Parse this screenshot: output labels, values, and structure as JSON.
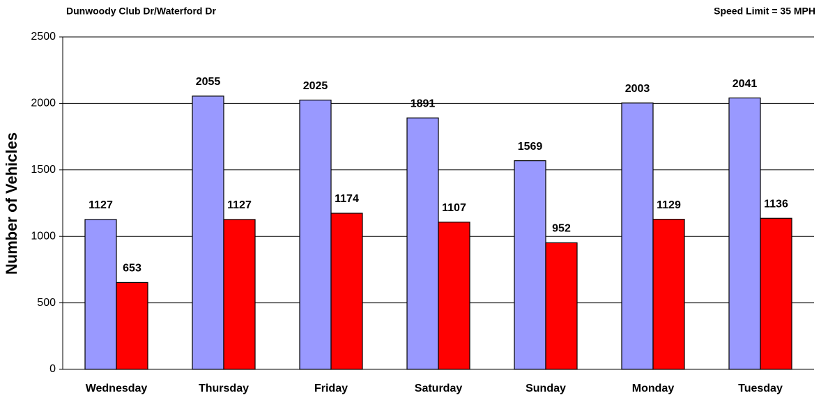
{
  "chart_data": {
    "type": "bar",
    "title": "Dunwoody Club Dr/Waterford Dr",
    "subtitle": "Speed Limit = 35 MPH",
    "y_label": "Number of Vehicles",
    "categories": [
      "Wednesday",
      "Thursday",
      "Friday",
      "Saturday",
      "Sunday",
      "Monday",
      "Tuesday"
    ],
    "series": [
      {
        "color": "#9999ff",
        "values": [
          1127,
          2055,
          2025,
          1891,
          1569,
          2003,
          2041
        ]
      },
      {
        "color": "#ff0000",
        "values": [
          653,
          1127,
          1174,
          1107,
          952,
          1129,
          1136
        ]
      }
    ],
    "ylim": [
      0,
      2500
    ],
    "yticks": [
      0,
      500,
      1000,
      1500,
      2000,
      2500
    ],
    "grid": true
  }
}
